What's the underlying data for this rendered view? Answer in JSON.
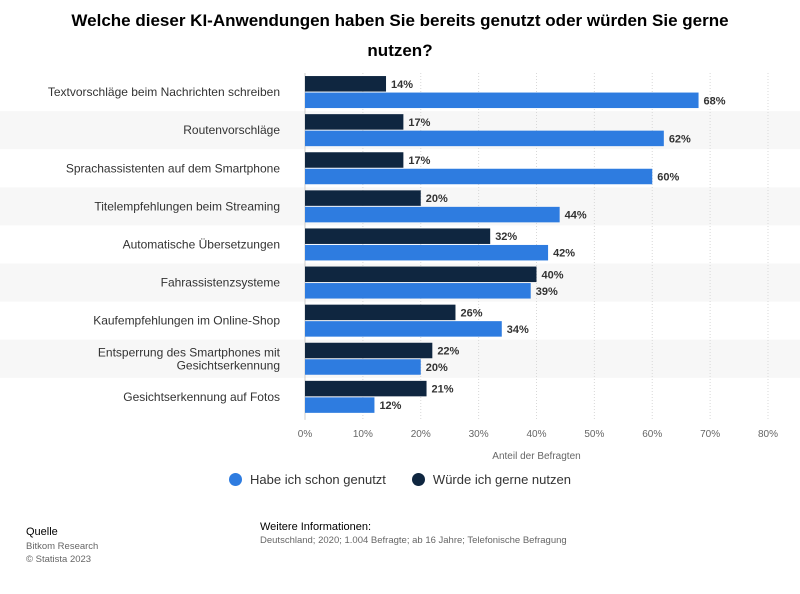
{
  "chart_data": {
    "type": "bar",
    "orientation": "horizontal",
    "title": "Welche dieser KI-Anwendungen haben Sie bereits genutzt oder würden Sie gerne nutzen?",
    "categories": [
      "Textvorschläge beim Nachrichten schreiben",
      "Routenvorschläge",
      "Sprachassistenten auf dem Smartphone",
      "Titelempfehlungen beim Streaming",
      "Automatische Übersetzungen",
      "Fahrassistenzsysteme",
      "Kaufempfehlungen im Online-Shop",
      "Entsperrung des Smartphones mit Gesichtserkennung",
      "Gesichtserkennung auf Fotos"
    ],
    "category_lines": [
      [
        "Textvorschläge beim Nachrichten schreiben"
      ],
      [
        "Routenvorschläge"
      ],
      [
        "Sprachassistenten auf dem Smartphone"
      ],
      [
        "Titelempfehlungen beim Streaming"
      ],
      [
        "Automatische Übersetzungen"
      ],
      [
        "Fahrassistenzsysteme"
      ],
      [
        "Kaufempfehlungen im Online-Shop"
      ],
      [
        "Entsperrung des Smartphones mit",
        "Gesichtserkennung"
      ],
      [
        "Gesichtserkennung auf Fotos"
      ]
    ],
    "series": [
      {
        "name": "Würde ich gerne nutzen",
        "color": "#0f2640",
        "values": [
          14,
          17,
          17,
          20,
          32,
          40,
          26,
          22,
          21
        ]
      },
      {
        "name": "Habe ich schon genutzt",
        "color": "#2e7ce0",
        "values": [
          68,
          62,
          60,
          44,
          42,
          39,
          34,
          20,
          12
        ]
      }
    ],
    "value_suffix": "%",
    "xlabel": "Anteil der Befragten",
    "xlim": [
      0,
      80
    ],
    "xticks": [
      0,
      10,
      20,
      30,
      40,
      50,
      60,
      70,
      80
    ],
    "tick_suffix": "%",
    "legend": [
      {
        "label": "Habe ich schon genutzt",
        "color": "#2e7ce0"
      },
      {
        "label": "Würde ich gerne nutzen",
        "color": "#0f2640"
      }
    ]
  },
  "footer": {
    "source_title": "Quelle",
    "source_lines": [
      "Bitkom Research",
      "© Statista 2023"
    ],
    "info_title": "Weitere Informationen:",
    "info_text": "Deutschland; 2020; 1.004 Befragte; ab 16 Jahre; Telefonische Befragung"
  }
}
